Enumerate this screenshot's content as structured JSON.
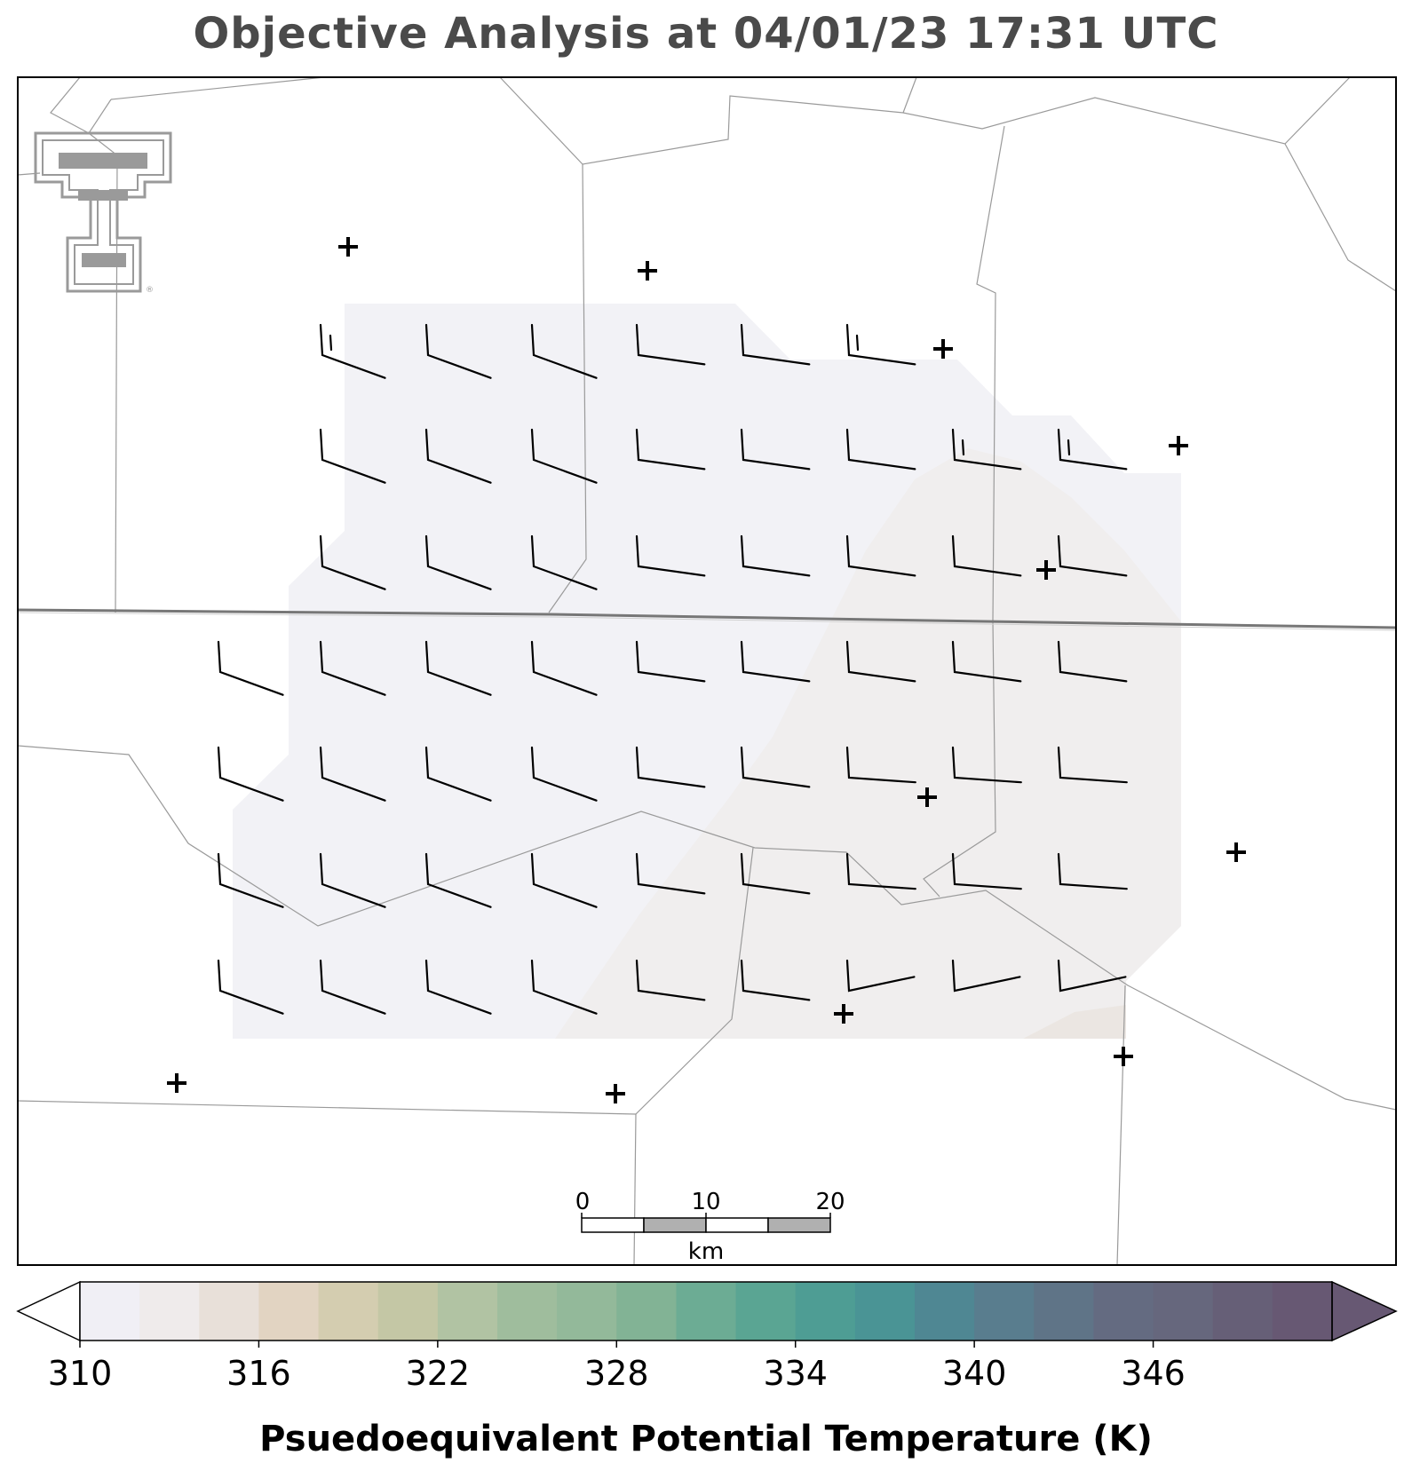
{
  "title": "Objective Analysis at 04/01/23 17:31 UTC",
  "colorbar": {
    "label": "Psuedoequivalent Potential Temperature (K)",
    "min": 310,
    "max": 352,
    "step": 2,
    "tick_values": [
      310,
      316,
      322,
      328,
      334,
      340,
      346
    ],
    "tick_labels": [
      "310",
      "316",
      "322",
      "328",
      "334",
      "340",
      "346"
    ],
    "colors": [
      "#f0eff5",
      "#efebeb",
      "#e8e0d9",
      "#e2d4c2",
      "#d4cdb0",
      "#c4c7a5",
      "#b1c3a3",
      "#9fbd9d",
      "#93b99a",
      "#82b395",
      "#6cac94",
      "#5aa593",
      "#4e9d94",
      "#4a9495",
      "#4f8793",
      "#597d8e",
      "#5f7487",
      "#646b81",
      "#66677d",
      "#665f77",
      "#675873"
    ],
    "extend": "both",
    "under_color": "#ffffff",
    "over_color": "#675873"
  },
  "scale_bar": {
    "labels": [
      "0",
      "10",
      "20"
    ],
    "unit": "km"
  },
  "logo": {
    "name": "Texas Tech Double T",
    "text": "®"
  },
  "analysis_field": {
    "description_colors": {
      "low": "#f1f1f5",
      "mid": "#efeeee",
      "high": "#eae6e3"
    },
    "value_range_k": [
      310,
      313
    ]
  },
  "wind_barbs": {
    "unit": "kt",
    "note_style": "northern hemisphere, barbs on shaft end"
  },
  "stations": [
    {
      "id": "s1"
    },
    {
      "id": "s2"
    },
    {
      "id": "s3"
    },
    {
      "id": "s4"
    },
    {
      "id": "s5"
    },
    {
      "id": "s6"
    },
    {
      "id": "s7"
    },
    {
      "id": "s8"
    },
    {
      "id": "s9"
    },
    {
      "id": "s10"
    },
    {
      "id": "s11"
    },
    {
      "id": "s12"
    }
  ]
}
